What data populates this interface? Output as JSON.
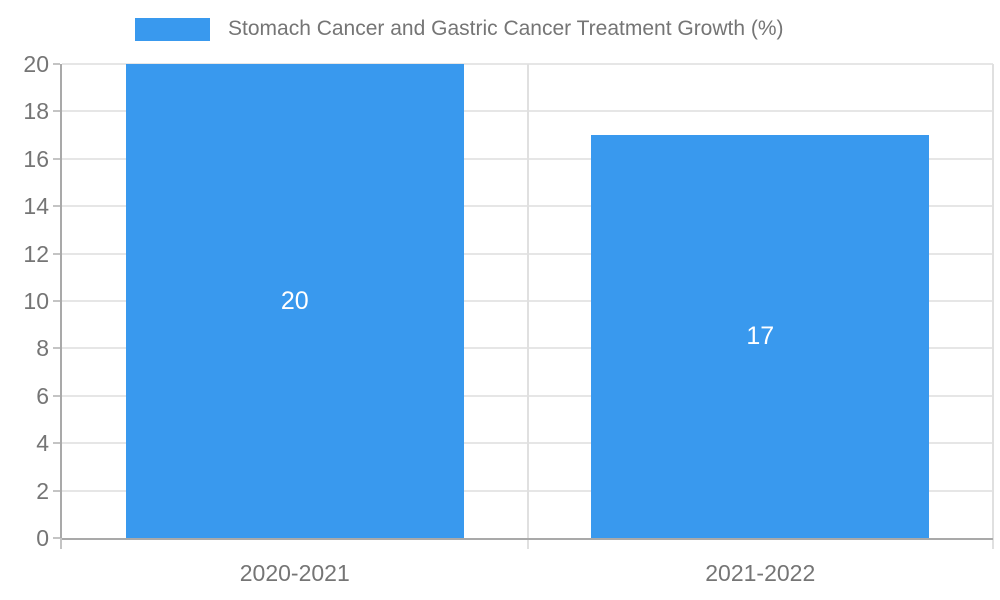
{
  "legend": {
    "label": "Stomach Cancer and Gastric Cancer Treatment Growth (%)"
  },
  "colors": {
    "bar": "#3999ee",
    "grid": "#e6e6e6",
    "divider": "#e0e0e0",
    "axis": "#a9a9a9",
    "tick": "#c4c4c4",
    "text": "#757575",
    "value_label": "#ffffff",
    "background": "#ffffff"
  },
  "chart_data": {
    "type": "bar",
    "title": "Stomach Cancer and Gastric Cancer Treatment Growth (%)",
    "categories": [
      "2020-2021",
      "2021-2022"
    ],
    "values": [
      20,
      17
    ],
    "xlabel": "",
    "ylabel": "",
    "ylim": [
      0,
      20
    ],
    "yticks": [
      0,
      2,
      4,
      6,
      8,
      10,
      12,
      14,
      16,
      18,
      20
    ],
    "grid": true,
    "legend_position": "top",
    "data_labels_shown": true,
    "series_color": "#3999ee"
  }
}
